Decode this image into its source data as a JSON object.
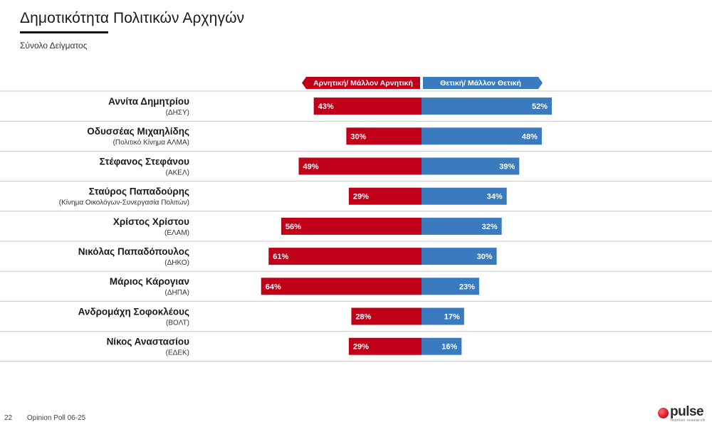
{
  "title": "Δημοτικότητα Πολιτικών Αρχηγών",
  "subtitle": "Σύνολο Δείγματος",
  "footer": {
    "page": "22",
    "label": "Opinion Poll 06-25"
  },
  "logo": {
    "word": "pulse",
    "sub": "market research"
  },
  "colors": {
    "negative": "#c00018",
    "positive": "#3a7bbf",
    "grid": "#c8c8c8"
  },
  "chart_data": {
    "type": "bar",
    "orientation": "horizontal-diverging",
    "xlim": [
      -100,
      100
    ],
    "legend": {
      "placement": "top"
    },
    "categories": [
      "Αννίτα Δημητρίου",
      "Οδυσσέας Μιχαηλίδης",
      "Στέφανος Στεφάνου",
      "Σταύρος Παπαδούρης",
      "Χρίστος Χρίστου",
      "Νικόλας Παπαδόπουλος",
      "Μάριος Κάρογιαν",
      "Ανδρομάχη Σοφοκλέους",
      "Νίκος Αναστασίου"
    ],
    "party": [
      "(ΔΗΣΥ)",
      "(Πολιτικό Κίνημα ΑΛΜΑ)",
      "(ΑΚΕΛ)",
      "(Κίνημα Οικολόγων-Συνεργασία Πολιτών)",
      "(ΕΛΑΜ)",
      "(ΔΗΚΟ)",
      "(ΔΗΠΑ)",
      "(ΒΟΛΤ)",
      "(ΕΔΕΚ)"
    ],
    "series": [
      {
        "name": "Αρνητική/ Μάλλον Αρνητική",
        "values": [
          43,
          30,
          49,
          29,
          56,
          61,
          64,
          28,
          29
        ],
        "labels": [
          "43%",
          "30%",
          "49%",
          "29%",
          "56%",
          "61%",
          "64%",
          "28%",
          "29%"
        ]
      },
      {
        "name": "Θετική/ Μάλλον Θετική",
        "values": [
          52,
          48,
          39,
          34,
          32,
          30,
          23,
          17,
          16
        ],
        "labels": [
          "52%",
          "48%",
          "39%",
          "34%",
          "32%",
          "30%",
          "23%",
          "17%",
          "16%"
        ]
      }
    ]
  }
}
